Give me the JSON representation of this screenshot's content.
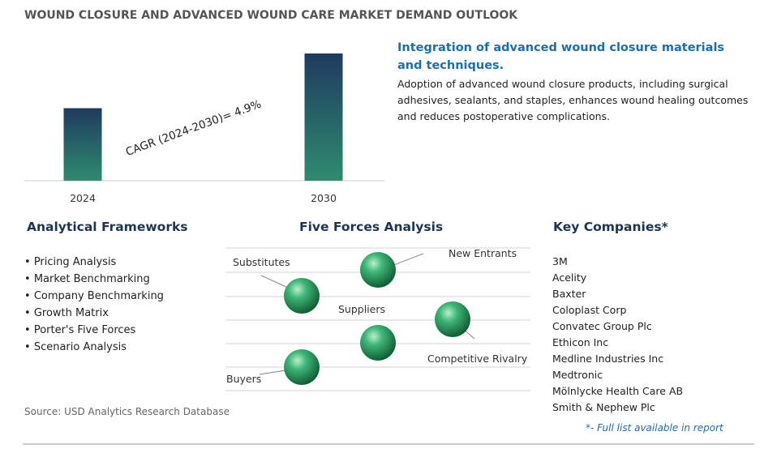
{
  "title": "WOUND CLOSURE AND ADVANCED WOUND CARE MARKET DEMAND OUTLOOK",
  "chart_data": {
    "type": "bar",
    "categories": [
      "2024",
      "2030"
    ],
    "values": [
      57,
      100
    ],
    "annotation": "CAGR (2024-2030)=  4.9%"
  },
  "highlight": {
    "heading": "Integration of advanced wound closure materials and techniques.",
    "body": "Adoption of advanced wound closure products, including surgical adhesives, sealants, and staples, enhances wound healing outcomes and reduces postoperative complications."
  },
  "frameworks": {
    "heading": "Analytical Frameworks",
    "items": [
      "Pricing Analysis",
      "Market Benchmarking",
      "Company Benchmarking",
      "Growth Matrix",
      "Porter's Five Forces",
      "Scenario Analysis"
    ]
  },
  "five_forces": {
    "heading": "Five Forces Analysis",
    "labels": [
      "Substitutes",
      "New Entrants",
      "Suppliers",
      "Competitive Rivalry",
      "Buyers"
    ]
  },
  "companies": {
    "heading": "Key Companies*",
    "items": [
      "3M",
      "Acelity",
      "Baxter",
      "Coloplast Corp",
      "Convatec Group Plc",
      "Ethicon Inc",
      "Medline Industries Inc",
      "Medtronic",
      "Mölnlycke Health Care AB",
      "Smith & Nephew Plc"
    ],
    "note": "*- Full list available in report"
  },
  "source": "Source: USD Analytics Research Database"
}
